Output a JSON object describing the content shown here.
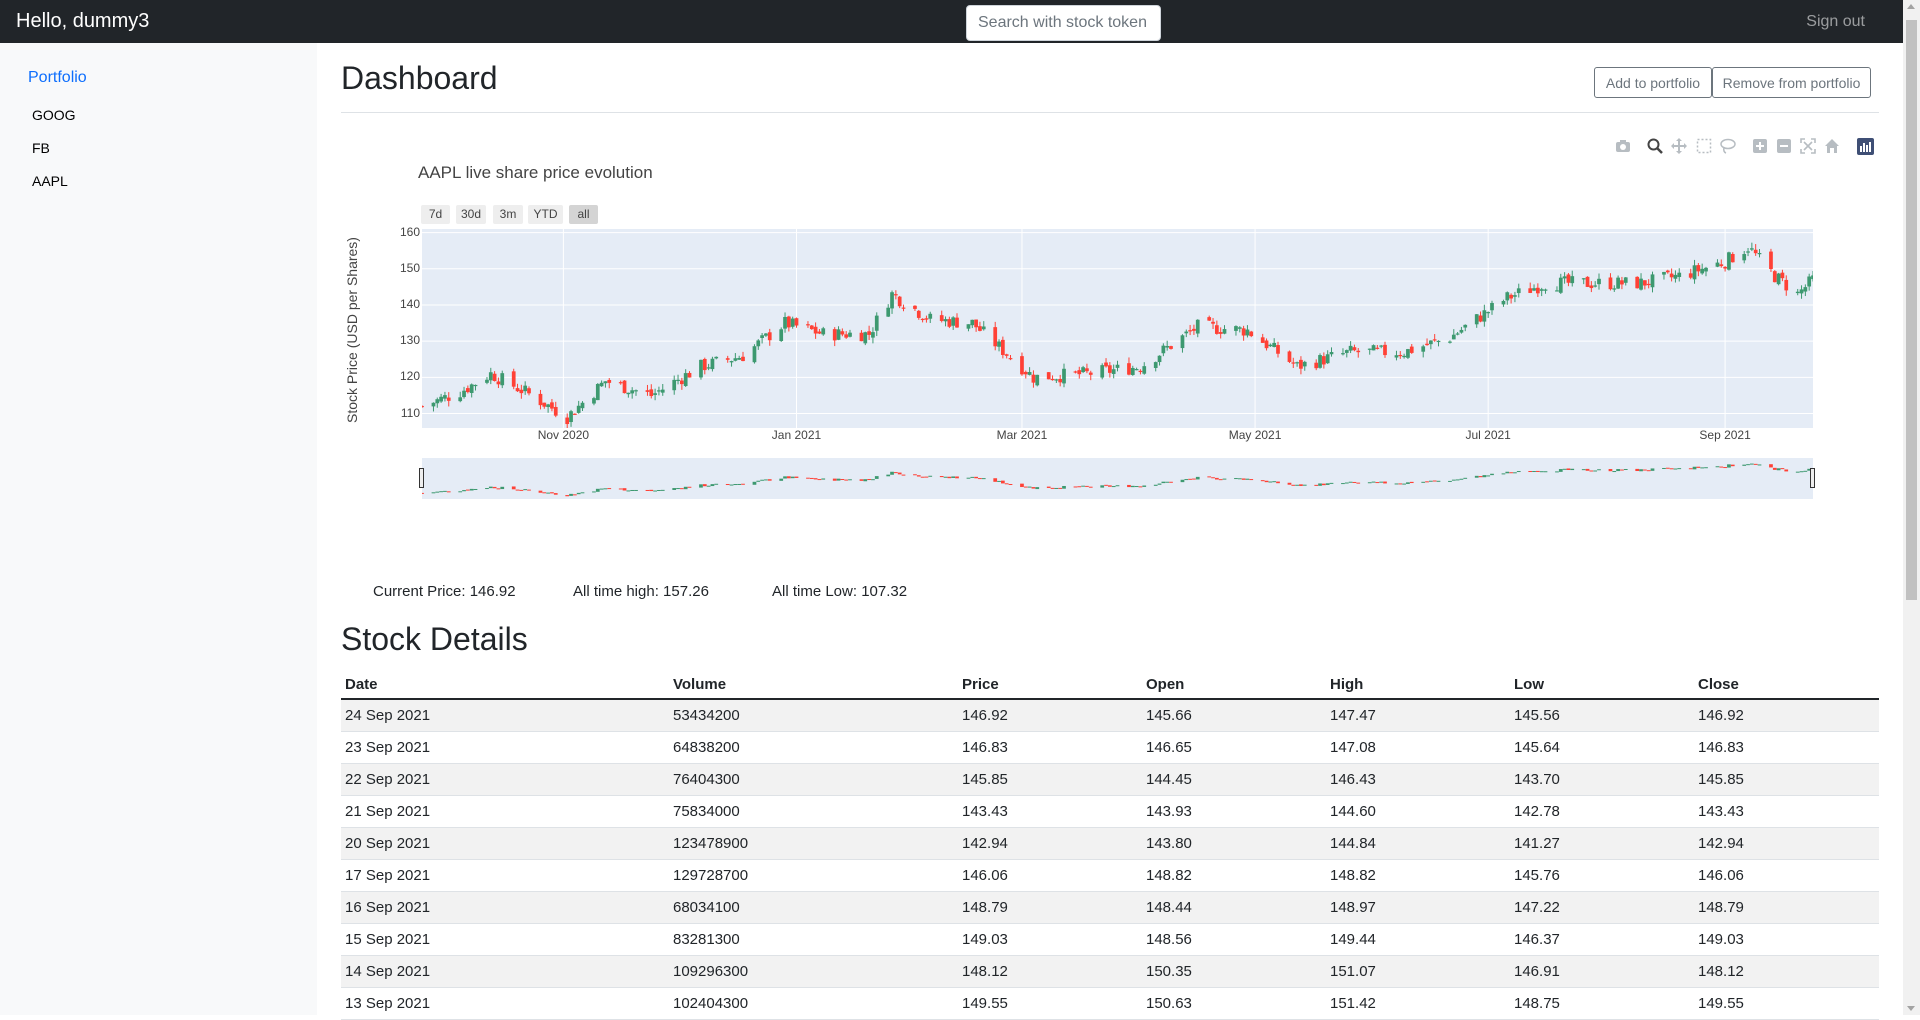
{
  "nav": {
    "greeting": "Hello, dummy3",
    "search_placeholder": "Search with stock token",
    "signout_label": "Sign out"
  },
  "sidebar": {
    "heading": "Portfolio",
    "items": [
      "GOOG",
      "FB",
      "AAPL"
    ]
  },
  "main": {
    "title": "Dashboard",
    "add_label": "Add to portfolio",
    "remove_label": "Remove from portfolio"
  },
  "chart_modebar": [
    "camera-icon",
    "zoom-icon",
    "pan-icon",
    "box-select-icon",
    "lasso-icon",
    "zoom-in-icon",
    "zoom-out-icon",
    "autoscale-icon",
    "reset-axes-icon",
    "plotly-logo-icon"
  ],
  "chart_data": {
    "type": "candlestick",
    "title": "AAPL live share price evolution",
    "ylabel": "Stock Price (USD per Shares)",
    "xlabel": "",
    "ylim": [
      106,
      161
    ],
    "y_ticks": [
      110,
      120,
      130,
      140,
      150,
      160
    ],
    "x_ticks": [
      {
        "label": "Nov 2020",
        "date": "2020-11-01"
      },
      {
        "label": "Jan 2021",
        "date": "2021-01-01"
      },
      {
        "label": "Mar 2021",
        "date": "2021-03-01"
      },
      {
        "label": "May 2021",
        "date": "2021-05-01"
      },
      {
        "label": "Jul 2021",
        "date": "2021-07-01"
      },
      {
        "label": "Sep 2021",
        "date": "2021-09-01"
      }
    ],
    "xlim": [
      "2020-09-25",
      "2021-09-24"
    ],
    "range_buttons": [
      {
        "label": "7d",
        "active": false
      },
      {
        "label": "30d",
        "active": false
      },
      {
        "label": "3m",
        "active": false
      },
      {
        "label": "YTD",
        "active": false
      },
      {
        "label": "all",
        "active": true
      }
    ],
    "increasing_color": "#3d9970",
    "decreasing_color": "#ff4136",
    "gridlines": true,
    "rangeslider": true,
    "close_series": [
      {
        "date": "2020-09-25",
        "close": 112
      },
      {
        "date": "2020-10-05",
        "close": 116
      },
      {
        "date": "2020-10-13",
        "close": 121
      },
      {
        "date": "2020-10-22",
        "close": 116
      },
      {
        "date": "2020-11-02",
        "close": 109
      },
      {
        "date": "2020-11-12",
        "close": 119
      },
      {
        "date": "2020-11-24",
        "close": 115
      },
      {
        "date": "2020-12-07",
        "close": 123
      },
      {
        "date": "2020-12-18",
        "close": 126
      },
      {
        "date": "2020-12-29",
        "close": 135
      },
      {
        "date": "2021-01-08",
        "close": 132
      },
      {
        "date": "2021-01-20",
        "close": 132
      },
      {
        "date": "2021-01-26",
        "close": 143
      },
      {
        "date": "2021-02-05",
        "close": 136
      },
      {
        "date": "2021-02-16",
        "close": 135
      },
      {
        "date": "2021-03-04",
        "close": 120
      },
      {
        "date": "2021-03-18",
        "close": 121
      },
      {
        "date": "2021-04-01",
        "close": 123
      },
      {
        "date": "2021-04-16",
        "close": 134
      },
      {
        "date": "2021-04-29",
        "close": 133
      },
      {
        "date": "2021-05-12",
        "close": 123
      },
      {
        "date": "2021-05-26",
        "close": 127
      },
      {
        "date": "2021-06-09",
        "close": 127
      },
      {
        "date": "2021-06-21",
        "close": 131
      },
      {
        "date": "2021-07-06",
        "close": 142
      },
      {
        "date": "2021-07-16",
        "close": 146
      },
      {
        "date": "2021-07-27",
        "close": 146
      },
      {
        "date": "2021-08-10",
        "close": 146
      },
      {
        "date": "2021-08-20",
        "close": 148
      },
      {
        "date": "2021-09-01",
        "close": 152
      },
      {
        "date": "2021-09-07",
        "close": 156
      },
      {
        "date": "2021-09-14",
        "close": 148
      },
      {
        "date": "2021-09-20",
        "close": 143
      },
      {
        "date": "2021-09-24",
        "close": 147
      }
    ]
  },
  "stats": {
    "current": "Current Price: 146.92",
    "high": "All time high: 157.26",
    "low": "All time Low: 107.32"
  },
  "details": {
    "title": "Stock Details",
    "columns": [
      "Date",
      "Volume",
      "Price",
      "Open",
      "High",
      "Low",
      "Close"
    ],
    "rows": [
      [
        "24 Sep 2021",
        "53434200",
        "146.92",
        "145.66",
        "147.47",
        "145.56",
        "146.92"
      ],
      [
        "23 Sep 2021",
        "64838200",
        "146.83",
        "146.65",
        "147.08",
        "145.64",
        "146.83"
      ],
      [
        "22 Sep 2021",
        "76404300",
        "145.85",
        "144.45",
        "146.43",
        "143.70",
        "145.85"
      ],
      [
        "21 Sep 2021",
        "75834000",
        "143.43",
        "143.93",
        "144.60",
        "142.78",
        "143.43"
      ],
      [
        "20 Sep 2021",
        "123478900",
        "142.94",
        "143.80",
        "144.84",
        "141.27",
        "142.94"
      ],
      [
        "17 Sep 2021",
        "129728700",
        "146.06",
        "148.82",
        "148.82",
        "145.76",
        "146.06"
      ],
      [
        "16 Sep 2021",
        "68034100",
        "148.79",
        "148.44",
        "148.97",
        "147.22",
        "148.79"
      ],
      [
        "15 Sep 2021",
        "83281300",
        "149.03",
        "148.56",
        "149.44",
        "146.37",
        "149.03"
      ],
      [
        "14 Sep 2021",
        "109296300",
        "148.12",
        "150.35",
        "151.07",
        "146.91",
        "148.12"
      ],
      [
        "13 Sep 2021",
        "102404300",
        "149.55",
        "150.63",
        "151.42",
        "148.75",
        "149.55"
      ]
    ]
  }
}
